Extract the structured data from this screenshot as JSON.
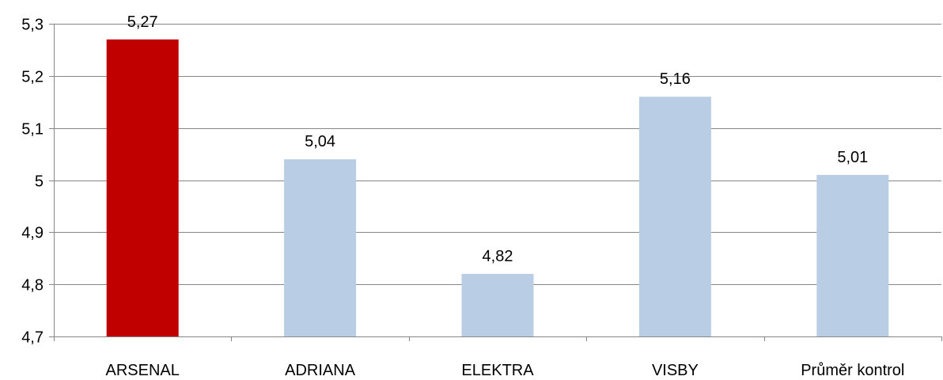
{
  "chart_data": {
    "type": "bar",
    "categories": [
      "ARSENAL",
      "ADRIANA",
      "ELEKTRA",
      "VISBY",
      "Průměr kontrol"
    ],
    "values": [
      5.27,
      5.04,
      4.82,
      5.16,
      5.01
    ],
    "value_labels": [
      "5,27",
      "5,04",
      "4,82",
      "5,16",
      "5,01"
    ],
    "bar_colors": [
      "#C00000",
      "#B9CDE5",
      "#B9CDE5",
      "#B9CDE5",
      "#B9CDE5"
    ],
    "ylim": [
      4.7,
      5.3
    ],
    "yticks": [
      4.7,
      4.8,
      4.9,
      5.0,
      5.1,
      5.2,
      5.3
    ],
    "ytick_labels": [
      "4,7",
      "4,8",
      "4,9",
      "5",
      "5,1",
      "5,2",
      "5,3"
    ],
    "grid": true,
    "legend": "none",
    "title": "",
    "xlabel": "",
    "ylabel": ""
  }
}
